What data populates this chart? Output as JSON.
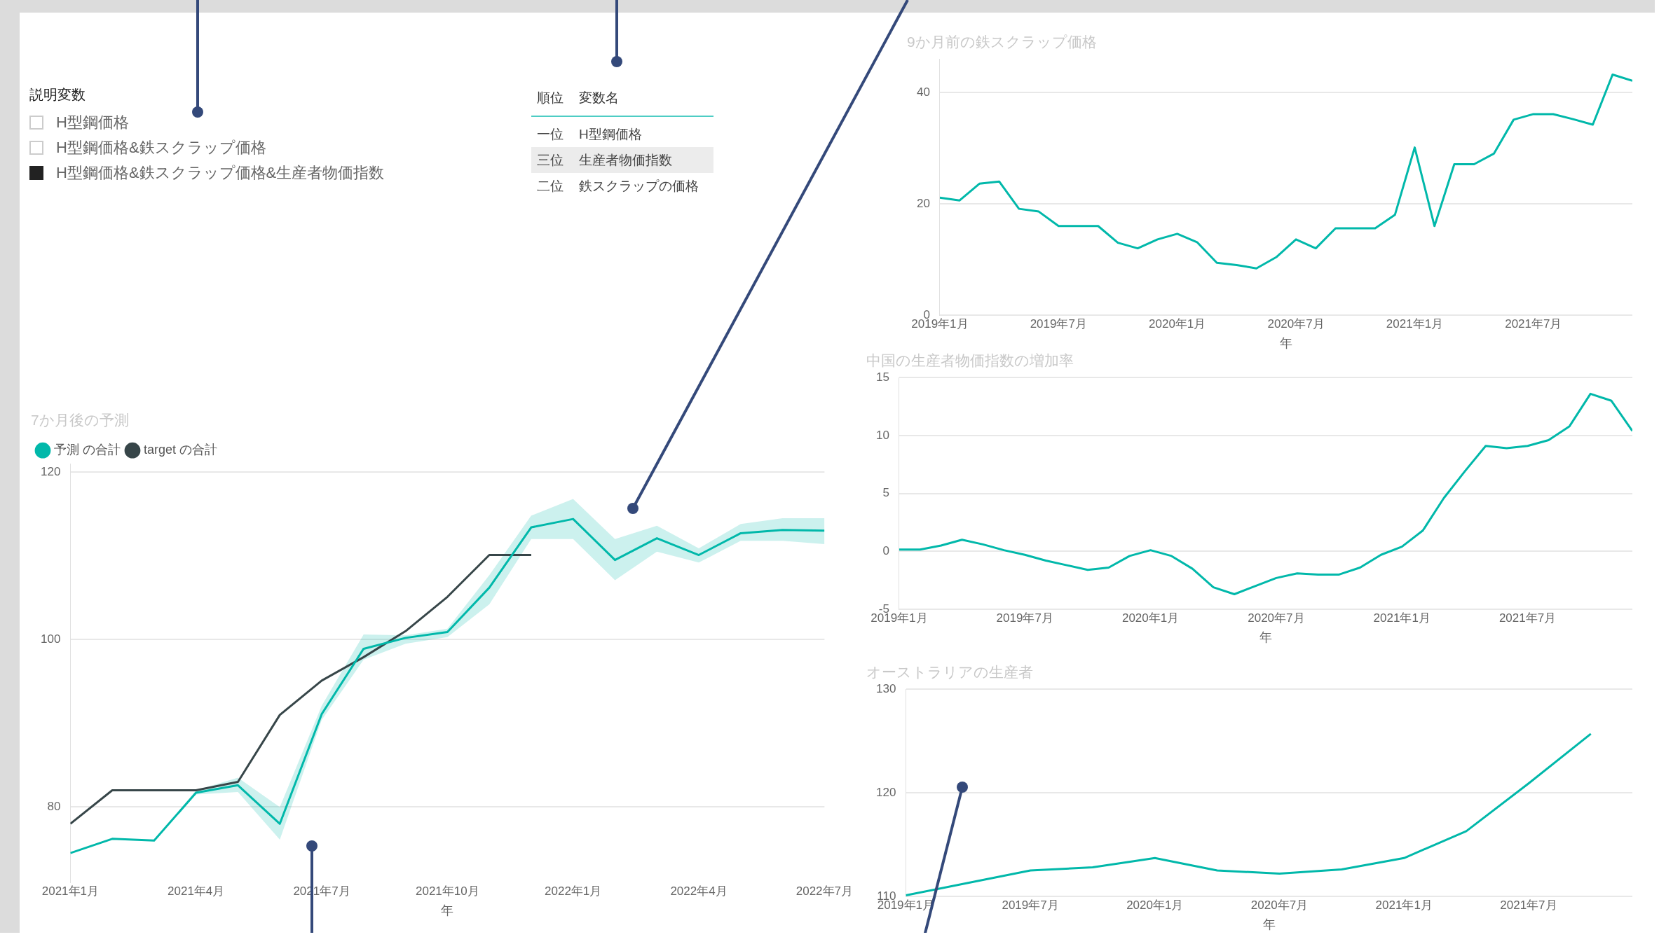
{
  "chart_data": [
    {
      "type": "other",
      "title": "説明変数",
      "annotations": [
        "H型鋼価格",
        "H型鋼価格&鉄スクラップ価格",
        "H型鋼価格&鉄スクラップ価格&生産者物価指数"
      ]
    },
    {
      "type": "other",
      "annotations": [
        "順位",
        "変数名",
        "一位",
        "H型鋼価格",
        "三位",
        "生産者物価指数",
        "二位",
        "鉄スクラップの価格"
      ]
    },
    {
      "type": "line",
      "title": "7か月後の予測",
      "xlabel": "年",
      "legend": "top left",
      "grid": "y",
      "marker": "none",
      "line_style": "solid",
      "x": [
        "2021-01",
        "2021-02",
        "2021-03",
        "2021-04",
        "2021-05",
        "2021-06",
        "2021-07",
        "2021-08",
        "2021-09",
        "2021-10",
        "2021-11",
        "2021-12",
        "2022-01",
        "2022-02",
        "2022-03",
        "2022-04",
        "2022-05",
        "2022-06",
        "2022-07"
      ],
      "series": [
        {
          "name": "予測 の合計",
          "color": "#01b8aa",
          "values": [
            74.5,
            76.2,
            76.0,
            81.7,
            82.6,
            78.0,
            91.1,
            98.9,
            100.2,
            100.9,
            106.2,
            113.4,
            114.4,
            109.5,
            112.1,
            110.1,
            112.7,
            113.1,
            113.0
          ],
          "lower": [
            74.5,
            76.2,
            76.0,
            81.5,
            81.8,
            76.1,
            90.4,
            97.6,
            99.5,
            100.3,
            104.2,
            112.0,
            112.0,
            107.1,
            110.5,
            109.2,
            111.8,
            111.8,
            111.4
          ],
          "upper": [
            74.5,
            76.2,
            76.0,
            82.0,
            83.5,
            80.0,
            92.1,
            100.6,
            100.5,
            101.3,
            107.7,
            114.8,
            116.8,
            112.0,
            113.6,
            110.9,
            113.8,
            114.5,
            114.5
          ]
        },
        {
          "name": "target の合計",
          "color": "#374649",
          "values": [
            78.0,
            82.0,
            82.0,
            82.0,
            83.0,
            91.0,
            95.1,
            97.9,
            101.0,
            105.1,
            110.1,
            110.1,
            null,
            null,
            null,
            null,
            null,
            null,
            null
          ]
        }
      ],
      "xlim": [
        "2021-01",
        "2022-07"
      ],
      "xticks": [
        {
          "value": "2021-01",
          "label": "2021年1月"
        },
        {
          "value": "2021-04",
          "label": "2021年4月"
        },
        {
          "value": "2021-07",
          "label": "2021年7月"
        },
        {
          "value": "2021-10",
          "label": "2021年10月"
        },
        {
          "value": "2022-01",
          "label": "2022年1月"
        },
        {
          "value": "2022-04",
          "label": "2022年4月"
        },
        {
          "value": "2022-07",
          "label": "2022年7月"
        }
      ],
      "ylim": [
        71,
        121
      ],
      "yticks": [
        80,
        100,
        120
      ]
    },
    {
      "type": "line",
      "title": "9か月前の鉄スクラップ価格",
      "xlabel": "年",
      "legend": false,
      "grid": "y",
      "marker": "none",
      "line_style": "solid",
      "x": [
        "2019-01",
        "2019-02",
        "2019-03",
        "2019-04",
        "2019-05",
        "2019-06",
        "2019-07",
        "2019-08",
        "2019-09",
        "2019-10",
        "2019-11",
        "2019-12",
        "2020-01",
        "2020-02",
        "2020-03",
        "2020-04",
        "2020-05",
        "2020-06",
        "2020-07",
        "2020-08",
        "2020-09",
        "2020-10",
        "2020-11",
        "2020-12",
        "2021-01",
        "2021-02",
        "2021-03",
        "2021-04",
        "2021-05",
        "2021-06",
        "2021-07",
        "2021-08",
        "2021-09",
        "2021-10",
        "2021-11",
        "2021-12"
      ],
      "series": [
        {
          "color": "#01b8aa",
          "values": [
            21.1,
            20.6,
            23.6,
            24.0,
            19.1,
            18.6,
            16.0,
            16.0,
            16.0,
            13.0,
            12.0,
            13.6,
            14.6,
            13.1,
            9.4,
            9.0,
            8.4,
            10.4,
            13.6,
            12.0,
            15.6,
            15.6,
            15.6,
            18.0,
            30.1,
            16.0,
            27.1,
            27.1,
            29.0,
            35.1,
            36.1,
            36.1,
            35.2,
            34.2,
            43.2,
            42.1
          ]
        }
      ],
      "xlim": [
        "2019-01",
        "2021-12"
      ],
      "xticks": [
        {
          "value": "2019-01",
          "label": "2019年1月"
        },
        {
          "value": "2019-07",
          "label": "2019年7月"
        },
        {
          "value": "2020-01",
          "label": "2020年1月"
        },
        {
          "value": "2020-07",
          "label": "2020年7月"
        },
        {
          "value": "2021-01",
          "label": "2021年1月"
        },
        {
          "value": "2021-07",
          "label": "2021年7月"
        }
      ],
      "ylim": [
        0,
        46
      ],
      "yticks": [
        0,
        20,
        40
      ]
    },
    {
      "type": "line",
      "title": "中国の生産者物価指数の増加率",
      "xlabel": "年",
      "legend": false,
      "grid": "y",
      "marker": "none",
      "line_style": "solid",
      "x": [
        "2019-01",
        "2019-02",
        "2019-03",
        "2019-04",
        "2019-05",
        "2019-06",
        "2019-07",
        "2019-08",
        "2019-09",
        "2019-10",
        "2019-11",
        "2019-12",
        "2020-01",
        "2020-02",
        "2020-03",
        "2020-04",
        "2020-05",
        "2020-06",
        "2020-07",
        "2020-08",
        "2020-09",
        "2020-10",
        "2020-11",
        "2020-12",
        "2021-01",
        "2021-02",
        "2021-03",
        "2021-04",
        "2021-05",
        "2021-06",
        "2021-07",
        "2021-08",
        "2021-09",
        "2021-10",
        "2021-11",
        "2021-12"
      ],
      "series": [
        {
          "color": "#01b8aa",
          "values": [
            0.15,
            0.15,
            0.5,
            1.0,
            0.6,
            0.1,
            -0.3,
            -0.8,
            -1.2,
            -1.6,
            -1.4,
            -0.4,
            0.1,
            -0.4,
            -1.5,
            -3.1,
            -3.7,
            -3.0,
            -2.3,
            -1.9,
            -2.0,
            -2.0,
            -1.4,
            -0.3,
            0.4,
            1.8,
            4.6,
            6.9,
            9.1,
            8.9,
            9.1,
            9.6,
            10.8,
            13.6,
            13.0,
            10.4
          ]
        }
      ],
      "xlim": [
        "2019-01",
        "2021-12"
      ],
      "xticks": [
        {
          "value": "2019-01",
          "label": "2019年1月"
        },
        {
          "value": "2019-07",
          "label": "2019年7月"
        },
        {
          "value": "2020-01",
          "label": "2020年1月"
        },
        {
          "value": "2020-07",
          "label": "2020年7月"
        },
        {
          "value": "2021-01",
          "label": "2021年1月"
        },
        {
          "value": "2021-07",
          "label": "2021年7月"
        }
      ],
      "ylim": [
        -5,
        15
      ],
      "yticks": [
        -5,
        0,
        5,
        10,
        15
      ]
    },
    {
      "type": "line",
      "title": "オーストラリアの生産者",
      "xlabel": "年",
      "legend": false,
      "grid": "y",
      "marker": "none",
      "line_style": "solid",
      "x": [
        "2019-01",
        "2019-04",
        "2019-07",
        "2019-10",
        "2020-01",
        "2020-04",
        "2020-07",
        "2020-10",
        "2021-01",
        "2021-04",
        "2021-07",
        "2021-10"
      ],
      "series": [
        {
          "color": "#01b8aa",
          "values": [
            110.1,
            111.3,
            112.5,
            112.8,
            113.7,
            112.5,
            112.2,
            112.6,
            113.7,
            116.3,
            120.9,
            125.7
          ]
        }
      ],
      "xlim": [
        "2019-01",
        "2021-12"
      ],
      "xticks": [
        {
          "value": "2019-01",
          "label": "2019年1月"
        },
        {
          "value": "2019-07",
          "label": "2019年7月"
        },
        {
          "value": "2020-01",
          "label": "2020年1月"
        },
        {
          "value": "2020-07",
          "label": "2020年7月"
        },
        {
          "value": "2021-01",
          "label": "2021年1月"
        },
        {
          "value": "2021-07",
          "label": "2021年7月"
        }
      ],
      "ylim": [
        110,
        130
      ],
      "yticks": [
        110,
        120,
        130
      ]
    }
  ]
}
